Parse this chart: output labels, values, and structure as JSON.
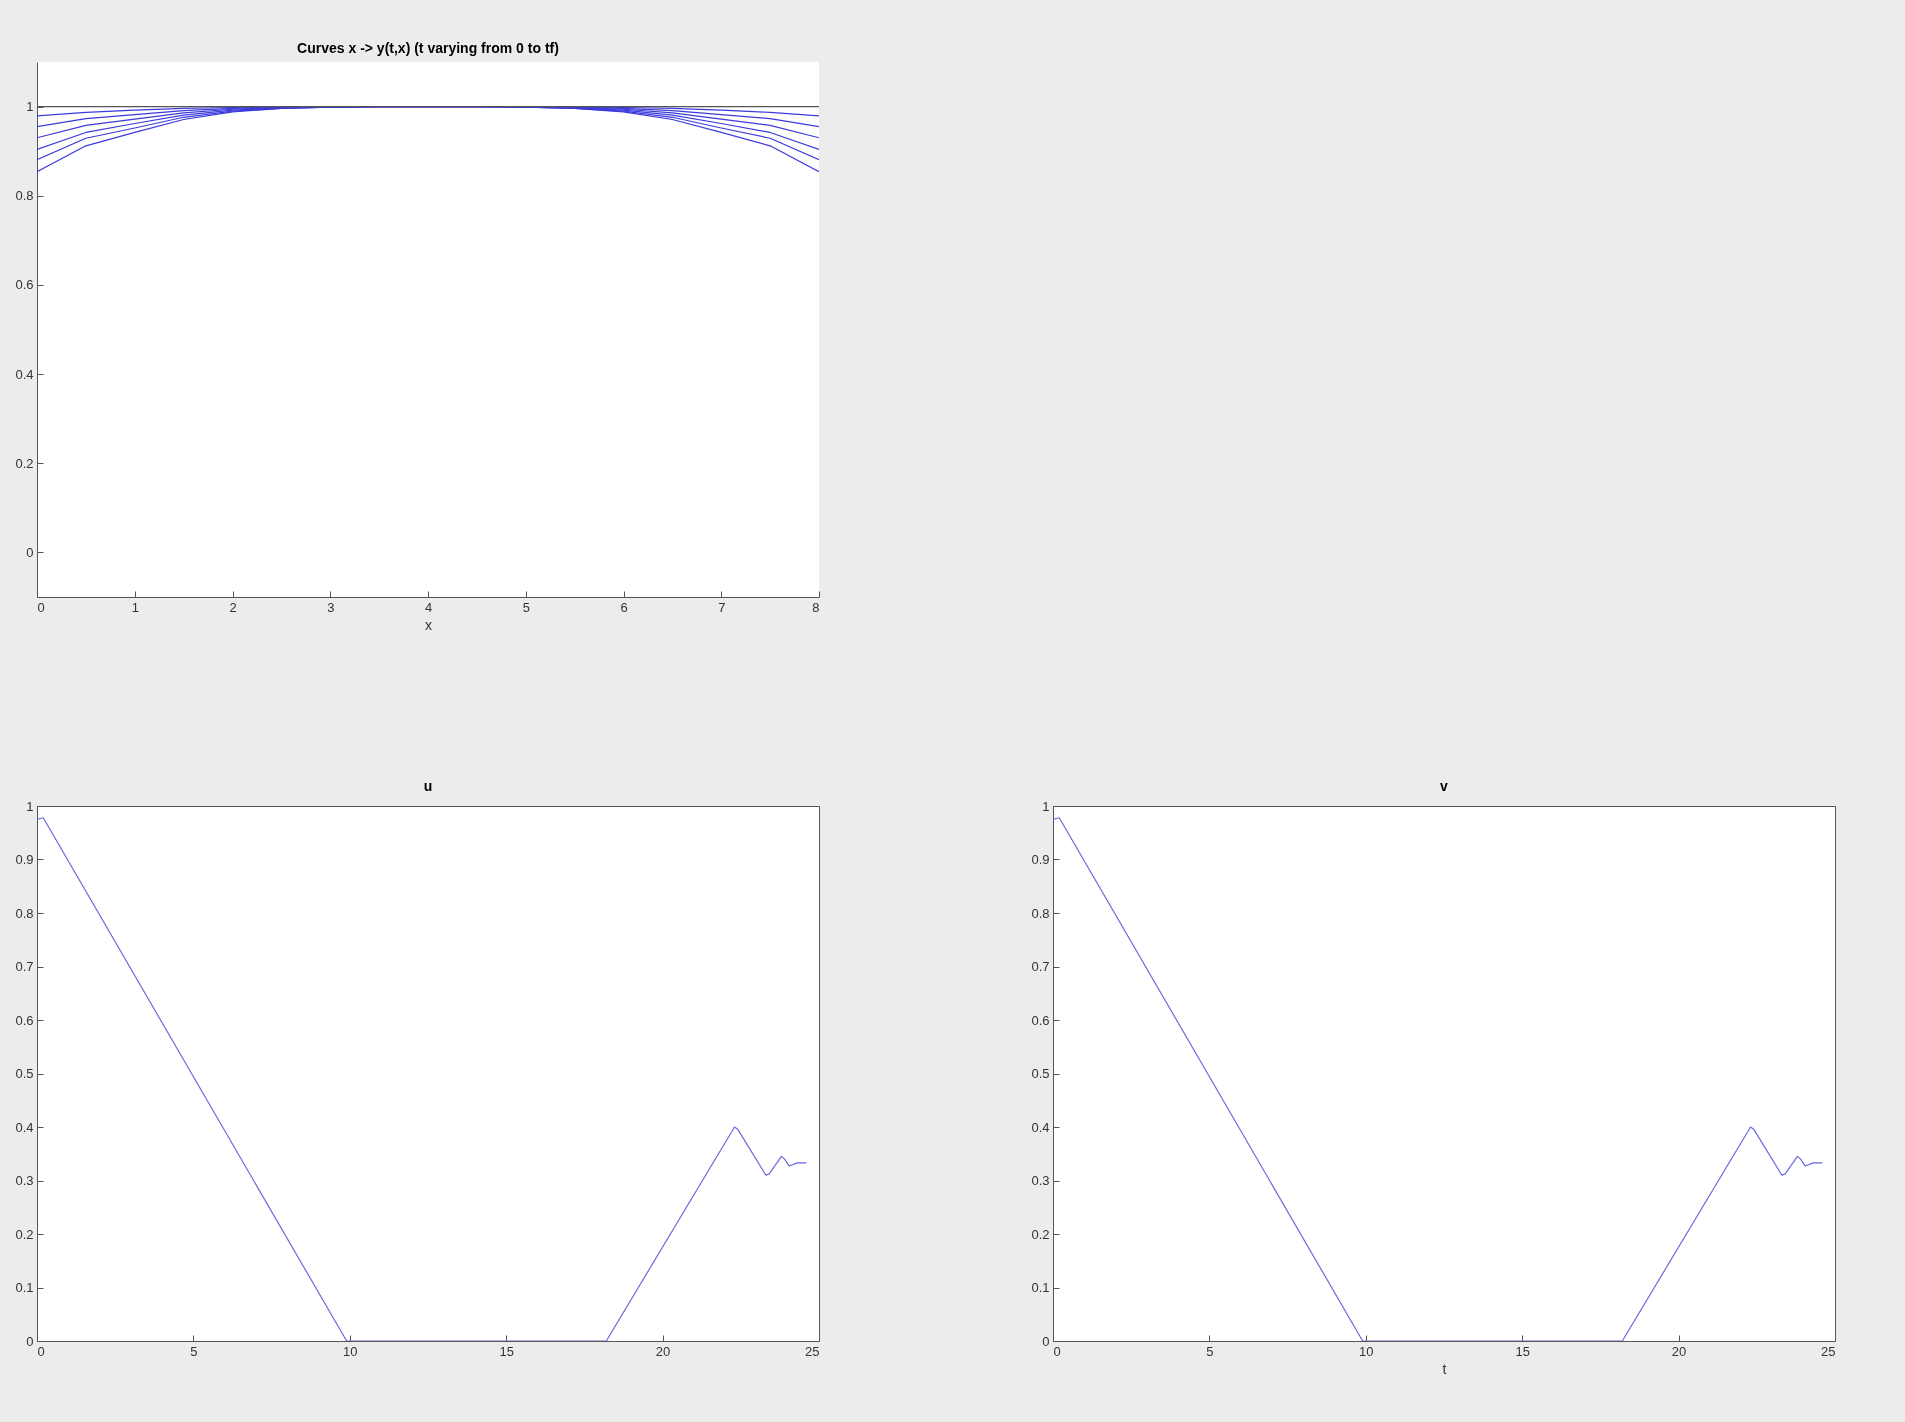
{
  "chart_data": [
    {
      "type": "line",
      "title": "Curves x -> y(t,x)  (t varying from 0 to tf)",
      "xlabel": "x",
      "x": [
        0,
        0.5,
        1,
        1.5,
        2,
        2.5,
        3,
        3.5,
        4,
        4.5,
        5,
        5.5,
        6,
        6.5,
        7,
        7.5,
        8
      ],
      "xlim": [
        0,
        8
      ],
      "xticks": [
        0,
        1,
        2,
        3,
        4,
        5,
        6,
        7,
        8
      ],
      "ylim": [
        -0.1,
        1.1
      ],
      "yticks": [
        0,
        0.2,
        0.4,
        0.6,
        0.8,
        1
      ],
      "grid": false,
      "series": [
        {
          "color": "#3b3bdc",
          "values": [
            0.854,
            0.912,
            0.942,
            0.971,
            0.988,
            0.996,
            0.999,
            1,
            1,
            1,
            0.999,
            0.996,
            0.988,
            0.971,
            0.942,
            0.912,
            0.854
          ]
        },
        {
          "color": "#3b3bdc",
          "values": [
            0.881,
            0.929,
            0.952,
            0.976,
            0.99,
            0.996,
            0.999,
            1,
            1,
            1,
            0.999,
            0.996,
            0.99,
            0.976,
            0.952,
            0.929,
            0.881
          ]
        },
        {
          "color": "#3b3bdc",
          "values": [
            0.904,
            0.942,
            0.962,
            0.981,
            0.992,
            0.997,
            0.999,
            1,
            1,
            1,
            0.999,
            0.997,
            0.992,
            0.981,
            0.962,
            0.942,
            0.904
          ]
        },
        {
          "color": "#3b3bdc",
          "values": [
            0.93,
            0.958,
            0.972,
            0.986,
            0.994,
            0.998,
            0.999,
            1,
            1,
            1,
            0.999,
            0.998,
            0.994,
            0.986,
            0.972,
            0.958,
            0.93
          ]
        },
        {
          "color": "#3b3bdc",
          "values": [
            0.955,
            0.973,
            0.982,
            0.991,
            0.996,
            0.999,
            1,
            1,
            1,
            1,
            1,
            0.999,
            0.996,
            0.991,
            0.982,
            0.973,
            0.955
          ]
        },
        {
          "color": "#3b3bdc",
          "values": [
            0.979,
            0.987,
            0.992,
            0.996,
            0.998,
            0.999,
            1,
            1,
            1,
            1,
            1,
            0.999,
            0.998,
            0.996,
            0.992,
            0.987,
            0.979
          ]
        },
        {
          "color": "#555555",
          "values": [
            1,
            1,
            1,
            1,
            1,
            1,
            1,
            1,
            1,
            1,
            1,
            1,
            1,
            1,
            1,
            1,
            1
          ]
        }
      ]
    },
    {
      "type": "line",
      "title": "u",
      "x": [
        0,
        0.2,
        9.9,
        18.2,
        22.3,
        22.4,
        23.3,
        23.4,
        23.8,
        23.9,
        24.05,
        24.3,
        24.6
      ],
      "xlim": [
        0,
        25
      ],
      "xticks": [
        0,
        5,
        10,
        15,
        20,
        25
      ],
      "ylim": [
        0,
        1
      ],
      "yticks": [
        0,
        0.1,
        0.2,
        0.3,
        0.4,
        0.5,
        0.6,
        0.7,
        0.8,
        0.9,
        1
      ],
      "grid": false,
      "series": [
        {
          "color": "#6b6bdd",
          "values": [
            0.975,
            0.978,
            0,
            0,
            0.4,
            0.396,
            0.31,
            0.312,
            0.345,
            0.34,
            0.327,
            0.333,
            0.333
          ]
        }
      ]
    },
    {
      "type": "line",
      "title": "v",
      "xlabel": "t",
      "x": [
        0,
        0.2,
        9.9,
        18.2,
        22.3,
        22.4,
        23.3,
        23.4,
        23.8,
        23.9,
        24.05,
        24.3,
        24.6
      ],
      "xlim": [
        0,
        25
      ],
      "xticks": [
        0,
        5,
        10,
        15,
        20,
        25
      ],
      "ylim": [
        0,
        1
      ],
      "yticks": [
        0,
        0.1,
        0.2,
        0.3,
        0.4,
        0.5,
        0.6,
        0.7,
        0.8,
        0.9,
        1
      ],
      "grid": false,
      "series": [
        {
          "color": "#6b6bdd",
          "values": [
            0.975,
            0.978,
            0,
            0,
            0.4,
            0.396,
            0.31,
            0.312,
            0.345,
            0.34,
            0.327,
            0.333,
            0.333
          ]
        }
      ]
    }
  ]
}
